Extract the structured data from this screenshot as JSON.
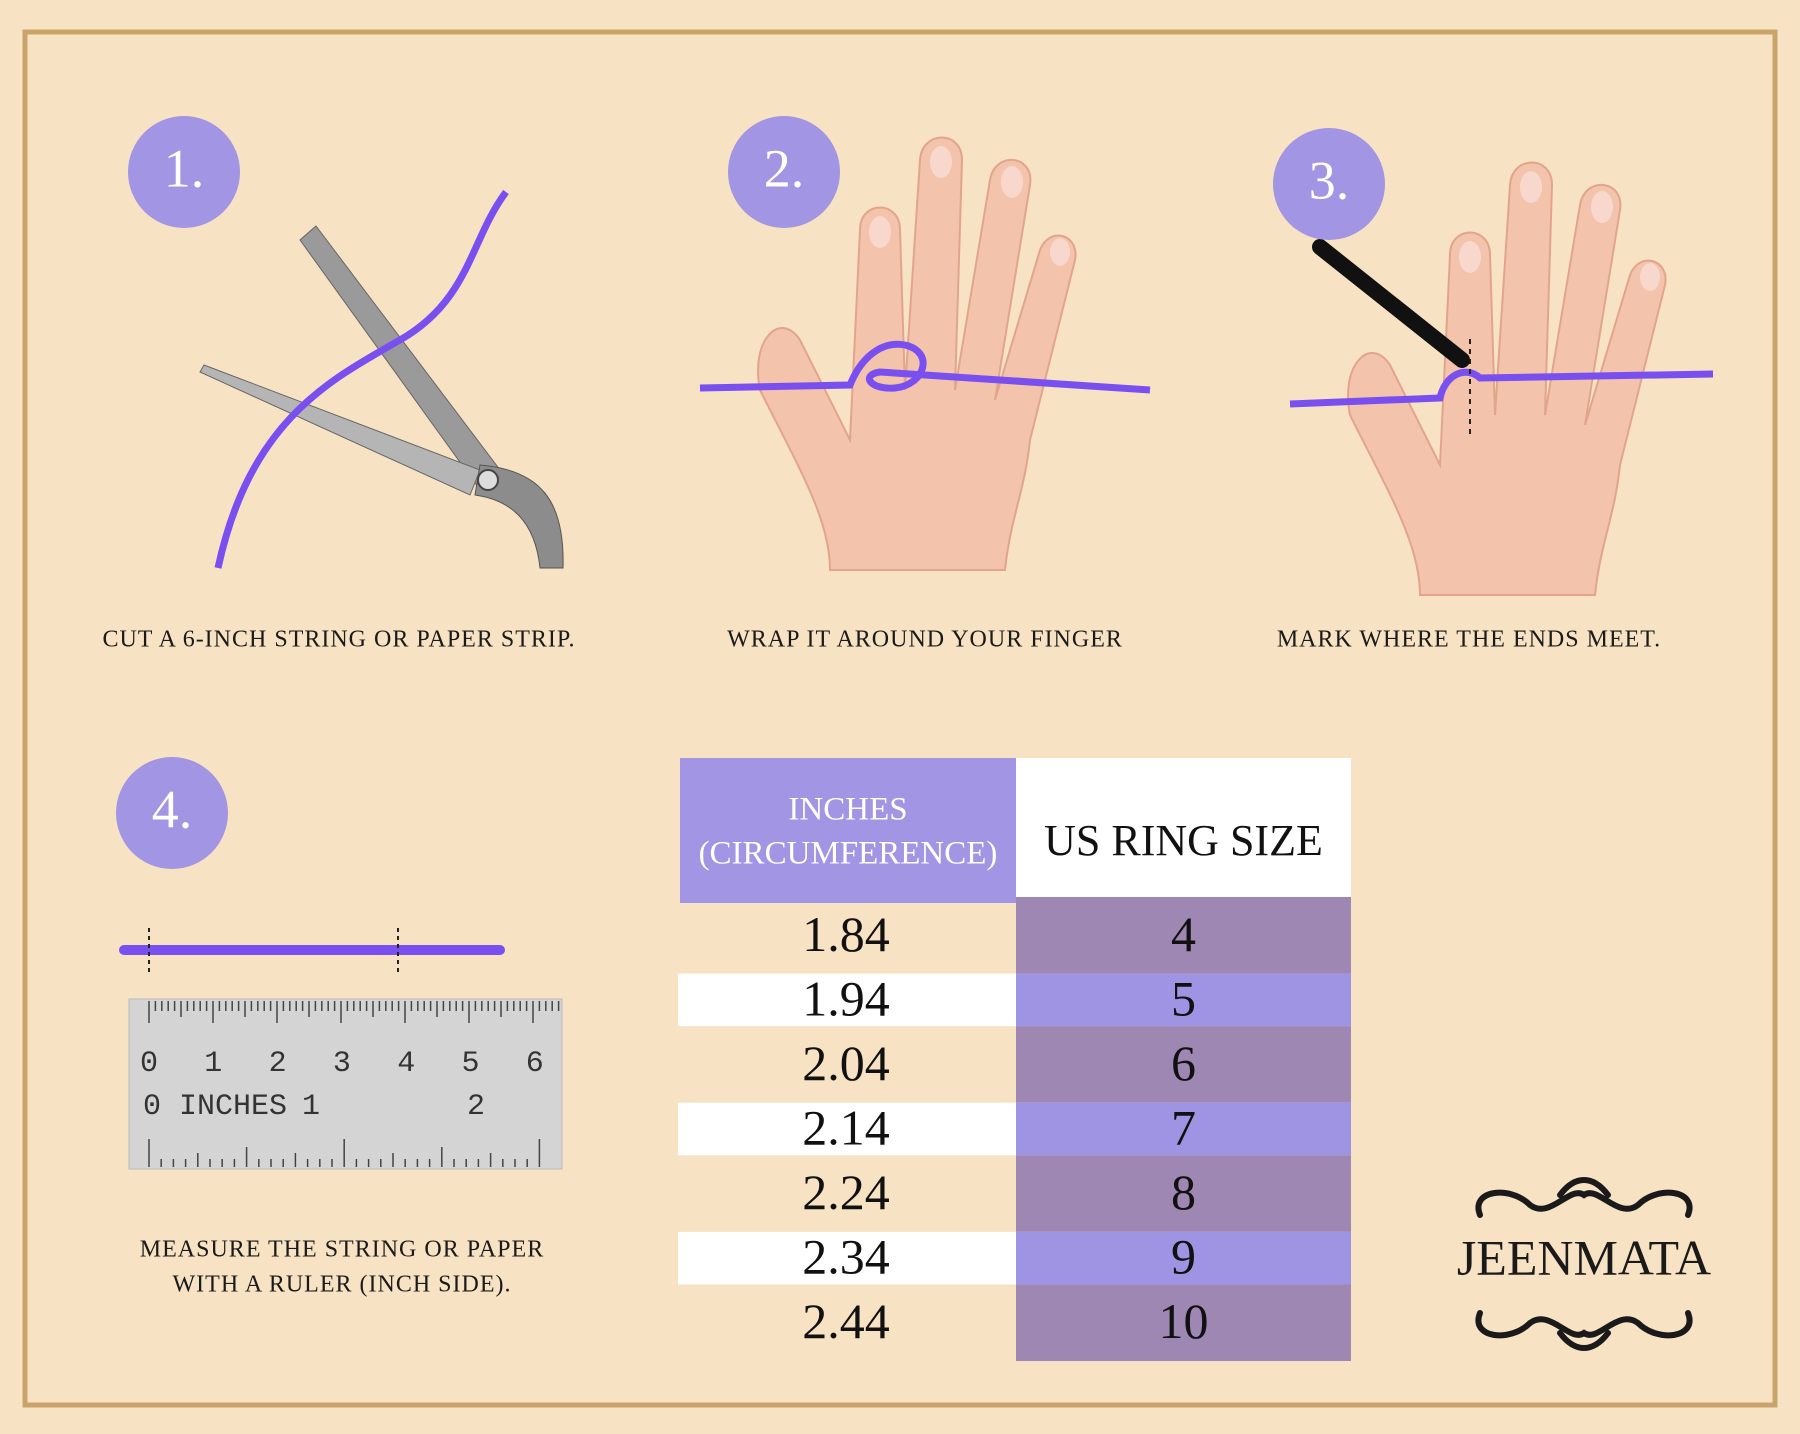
{
  "steps": [
    {
      "number": "1.",
      "caption": [
        "CUT A 6-INCH STRING OR PAPER STRIP."
      ]
    },
    {
      "number": "2.",
      "caption": [
        "WRAP IT AROUND YOUR FINGER"
      ]
    },
    {
      "number": "3.",
      "caption": [
        "MARK WHERE THE ENDS MEET."
      ]
    },
    {
      "number": "4.",
      "caption": [
        "MEASURE THE STRING OR PAPER",
        "WITH A RULER (INCH SIDE)."
      ]
    }
  ],
  "ruler": {
    "cm_labels": [
      "0",
      "1",
      "2",
      "3",
      "4",
      "5",
      "6"
    ],
    "inch_labels": [
      "0 INCHES",
      "1",
      "2"
    ]
  },
  "table": {
    "header": [
      [
        "INCHES",
        "(CIRCUMFERENCE)"
      ],
      [
        "US RING SIZE"
      ]
    ],
    "rows": [
      [
        "1.84",
        "4"
      ],
      [
        "1.94",
        "5"
      ],
      [
        "2.04",
        "6"
      ],
      [
        "2.14",
        "7"
      ],
      [
        "2.24",
        "8"
      ],
      [
        "2.34",
        "9"
      ],
      [
        "2.44",
        "10"
      ]
    ]
  },
  "brand": "JEENMATA"
}
